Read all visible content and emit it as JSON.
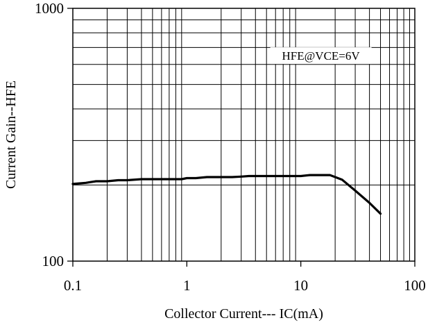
{
  "chart_data": {
    "type": "line",
    "title": "",
    "xlabel": "Collector Current--- IC(mA)",
    "ylabel": "Current Gain--HFE",
    "xscale": "log",
    "yscale": "log",
    "xlim": [
      0.1,
      100
    ],
    "ylim": [
      100,
      1000
    ],
    "grid": true,
    "x_tick_labels": [
      "0.1",
      "1",
      "10",
      "100"
    ],
    "y_tick_labels": [
      "100",
      "1000"
    ],
    "annotation": "HFE@VCE=6V",
    "series": [
      {
        "color": "#000000",
        "points": [
          [
            0.1,
            202
          ],
          [
            0.13,
            204
          ],
          [
            0.16,
            207
          ],
          [
            0.2,
            207
          ],
          [
            0.25,
            209
          ],
          [
            0.3,
            209
          ],
          [
            0.4,
            211
          ],
          [
            0.5,
            211
          ],
          [
            0.6,
            211
          ],
          [
            0.8,
            211
          ],
          [
            0.9,
            211
          ],
          [
            1.0,
            213
          ],
          [
            1.2,
            213
          ],
          [
            1.5,
            215
          ],
          [
            2.0,
            215
          ],
          [
            2.5,
            215
          ],
          [
            3.0,
            216
          ],
          [
            3.5,
            217
          ],
          [
            5.0,
            217
          ],
          [
            7.0,
            217
          ],
          [
            10.0,
            217
          ],
          [
            12.0,
            219
          ],
          [
            18.0,
            219
          ],
          [
            23.0,
            210
          ],
          [
            30.0,
            190
          ],
          [
            40.0,
            170
          ],
          [
            50.0,
            154
          ]
        ]
      }
    ]
  }
}
